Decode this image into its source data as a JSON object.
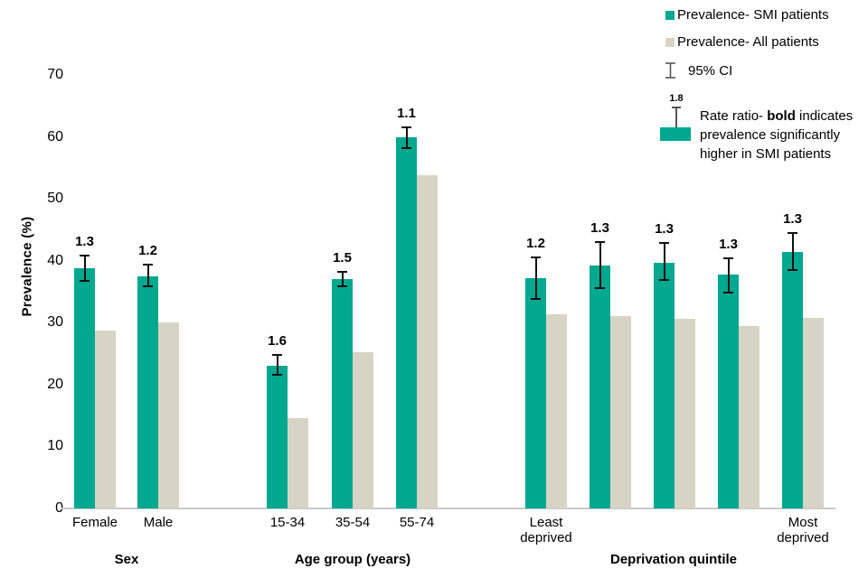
{
  "chart_data": {
    "type": "bar",
    "title": "",
    "ylabel": "Prevalence (%)",
    "ylim": [
      0,
      70
    ],
    "yticks": [
      0,
      10,
      20,
      30,
      40,
      50,
      60,
      70
    ],
    "grid": false,
    "legend_position": "top-right",
    "series": [
      "Prevalence- SMI patients",
      "Prevalence- All patients"
    ],
    "colors": {
      "smi": "#00A88F",
      "all": "#D8D4C5",
      "axis": "#C9C9C9",
      "error_bar": "#111111"
    },
    "groups": [
      {
        "label": "Sex",
        "categories": [
          {
            "label": "Female",
            "smi": 38.8,
            "all": 28.8,
            "ci": [
              36.6,
              41.0
            ],
            "rate_ratio": "1.3",
            "rate_ratio_bold": true
          },
          {
            "label": "Male",
            "smi": 37.5,
            "all": 30.0,
            "ci": [
              35.7,
              39.5
            ],
            "rate_ratio": "1.2",
            "rate_ratio_bold": true
          }
        ]
      },
      {
        "label": "Age group (years)",
        "categories": [
          {
            "label": "15-34",
            "smi": 23.1,
            "all": 14.6,
            "ci": [
              21.4,
              24.9
            ],
            "rate_ratio": "1.6",
            "rate_ratio_bold": true
          },
          {
            "label": "35-54",
            "smi": 37.1,
            "all": 25.3,
            "ci": [
              35.8,
              38.4
            ],
            "rate_ratio": "1.5",
            "rate_ratio_bold": true
          },
          {
            "label": "55-74",
            "smi": 59.9,
            "all": 53.8,
            "ci": [
              58.0,
              61.7
            ],
            "rate_ratio": "1.1",
            "rate_ratio_bold": true
          }
        ]
      },
      {
        "label": "Deprivation quintile",
        "categories": [
          {
            "label": "Least\ndeprived",
            "smi": 37.2,
            "all": 31.3,
            "ci": [
              33.7,
              40.7
            ],
            "rate_ratio": "1.2",
            "rate_ratio_bold": true
          },
          {
            "label": "",
            "smi": 39.2,
            "all": 31.0,
            "ci": [
              35.5,
              43.1
            ],
            "rate_ratio": "1.3",
            "rate_ratio_bold": true
          },
          {
            "label": "",
            "smi": 39.7,
            "all": 30.6,
            "ci": [
              36.7,
              43.0
            ],
            "rate_ratio": "1.3",
            "rate_ratio_bold": true
          },
          {
            "label": "",
            "smi": 37.7,
            "all": 29.4,
            "ci": [
              34.7,
              40.6
            ],
            "rate_ratio": "1.3",
            "rate_ratio_bold": true
          },
          {
            "label": "Most\ndeprived",
            "smi": 41.4,
            "all": 30.7,
            "ci": [
              38.3,
              44.6
            ],
            "rate_ratio": "1.3",
            "rate_ratio_bold": true
          }
        ]
      }
    ]
  },
  "legend": {
    "items": [
      {
        "label": "Prevalence- SMI patients"
      },
      {
        "label": "Prevalence- All patients"
      },
      {
        "label": "95% CI"
      },
      {
        "rate_value": "1.8",
        "text_prefix": "Rate ratio- ",
        "text_bold": "bold",
        "text_suffix": " indicates prevalence significantly higher in SMI patients"
      }
    ]
  }
}
